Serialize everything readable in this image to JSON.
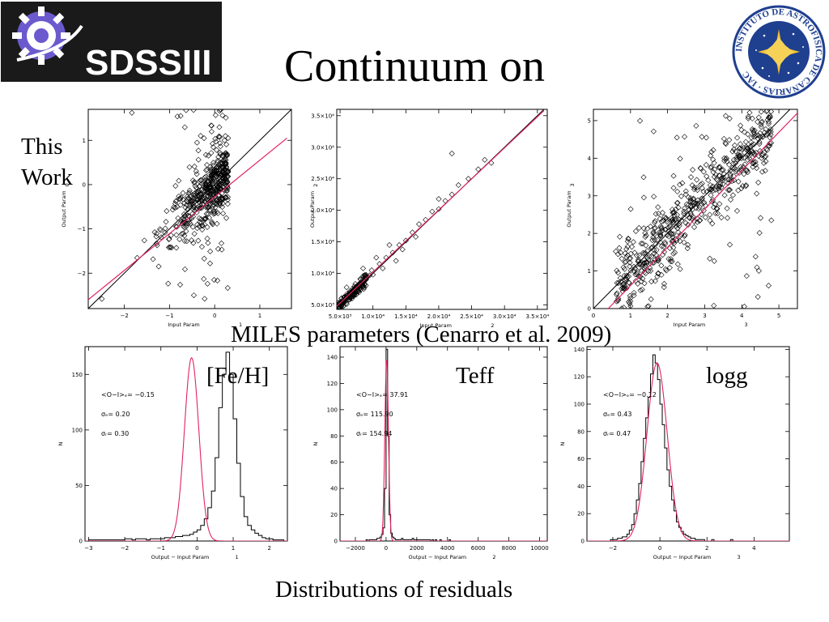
{
  "title": "Continuum on",
  "logos": {
    "sdss_text": "SDSSIII",
    "iac_text": "INSTITUTO DE ASTROFISICA DE CANARIAS · IAC"
  },
  "side_label_line1": "This",
  "side_label_line2": "Work",
  "miles_caption": "MILES parameters  (Cenarro et al. 2009)",
  "residuals_caption": "Distributions of residuals",
  "param_labels": {
    "feh": "[Fe/H]",
    "teff": "Teff",
    "logg": "logg"
  },
  "colors": {
    "fit_line": "#e0245e",
    "data": "#000000"
  },
  "chart_data": [
    {
      "id": "scatter-feh",
      "type": "scatter",
      "xlabel": "Input Param",
      "xlabel_suffix": "1",
      "ylabel": "Output Param",
      "side_tick": "0",
      "xlim": [
        -2.8,
        1.7
      ],
      "ylim": [
        -2.8,
        1.7
      ],
      "xticks": [
        {
          "v": -2,
          "t": "−2"
        },
        {
          "v": -1,
          "t": "−1"
        },
        {
          "v": 0,
          "t": "0"
        },
        {
          "v": 1,
          "t": "1"
        }
      ],
      "yticks": [
        {
          "v": -2,
          "t": "−2"
        },
        {
          "v": -1,
          "t": "−1"
        },
        {
          "v": 0,
          "t": "0"
        },
        {
          "v": 1,
          "t": "1"
        }
      ],
      "one_to_one": [
        [
          -2.8,
          -2.8
        ],
        [
          1.7,
          1.7
        ]
      ],
      "fit": [
        [
          -2.8,
          -2.6
        ],
        [
          1.6,
          1.05
        ]
      ],
      "cluster": {
        "n": 520,
        "center": 0.0,
        "spread_x": 0.7,
        "spread_y": 0.35,
        "skew": "neg",
        "outliers": 0.15
      }
    },
    {
      "id": "scatter-teff",
      "type": "scatter",
      "xlabel": "Input Param",
      "xlabel_suffix": "2",
      "ylabel": "Output Param",
      "side_tick": "2",
      "xlim": [
        4500,
        36500
      ],
      "ylim": [
        4300,
        36000
      ],
      "xticks": [
        {
          "v": 5000,
          "t": "5.0×10³"
        },
        {
          "v": 10000,
          "t": "1.0×10⁴"
        },
        {
          "v": 15000,
          "t": "1.5×10⁴"
        },
        {
          "v": 20000,
          "t": "2.0×10⁴"
        },
        {
          "v": 25000,
          "t": "2.5×10⁴"
        },
        {
          "v": 30000,
          "t": "3.0×10⁴"
        },
        {
          "v": 35000,
          "t": "3.5×10⁴"
        }
      ],
      "yticks": [
        {
          "v": 5000,
          "t": "5.0×10³"
        },
        {
          "v": 10000,
          "t": "1.0×10⁴"
        },
        {
          "v": 15000,
          "t": "1.5×10⁴"
        },
        {
          "v": 20000,
          "t": "2.0×10⁴"
        },
        {
          "v": 25000,
          "t": "2.5×10⁴"
        },
        {
          "v": 30000,
          "t": "3.0×10⁴"
        },
        {
          "v": 35000,
          "t": "3.5×10⁴"
        }
      ],
      "one_to_one": [
        [
          4500,
          4500
        ],
        [
          36000,
          36000
        ]
      ],
      "fit": [
        [
          4500,
          4800
        ],
        [
          36000,
          35800
        ]
      ],
      "points": [
        [
          5000,
          5100
        ],
        [
          5200,
          5300
        ],
        [
          5500,
          5600
        ],
        [
          5800,
          5900
        ],
        [
          6000,
          6200
        ],
        [
          6300,
          6200
        ],
        [
          6600,
          6700
        ],
        [
          7000,
          7100
        ],
        [
          7500,
          7800
        ],
        [
          8000,
          8200
        ],
        [
          8500,
          8600
        ],
        [
          9000,
          9200
        ],
        [
          9500,
          9700
        ],
        [
          10000,
          9800
        ],
        [
          11000,
          11500
        ],
        [
          12000,
          12500
        ],
        [
          13000,
          13300
        ],
        [
          14000,
          14500
        ],
        [
          15000,
          15200
        ],
        [
          16000,
          16500
        ],
        [
          17000,
          17800
        ],
        [
          18000,
          18500
        ],
        [
          19000,
          19800
        ],
        [
          20000,
          20200
        ],
        [
          21000,
          21500
        ],
        [
          22000,
          22500
        ],
        [
          23000,
          24000
        ],
        [
          24500,
          25000
        ],
        [
          26000,
          26500
        ],
        [
          27000,
          28000
        ],
        [
          28000,
          27500
        ],
        [
          22000,
          29000
        ],
        [
          10500,
          12500
        ],
        [
          8500,
          10800
        ],
        [
          13500,
          12000
        ],
        [
          6000,
          7800
        ],
        [
          5500,
          4800
        ],
        [
          7000,
          6400
        ],
        [
          11500,
          10800
        ],
        [
          16500,
          15800
        ],
        [
          9800,
          10500
        ],
        [
          20000,
          21800
        ],
        [
          12500,
          14500
        ],
        [
          14500,
          13800
        ]
      ],
      "dense_cluster": {
        "n": 150,
        "x": [
          4700,
          9000
        ],
        "slope": 1.0,
        "spread": 500
      }
    },
    {
      "id": "scatter-logg",
      "type": "scatter",
      "xlabel": "Input Param",
      "xlabel_suffix": "3",
      "ylabel": "Output Param",
      "side_tick": "3",
      "xlim": [
        0,
        5.5
      ],
      "ylim": [
        0,
        5.3
      ],
      "xticks": [
        {
          "v": 0,
          "t": "0"
        },
        {
          "v": 1,
          "t": "1"
        },
        {
          "v": 2,
          "t": "2"
        },
        {
          "v": 3,
          "t": "3"
        },
        {
          "v": 4,
          "t": "4"
        },
        {
          "v": 5,
          "t": "5"
        }
      ],
      "yticks": [
        {
          "v": 0,
          "t": "0"
        },
        {
          "v": 1,
          "t": "1"
        },
        {
          "v": 2,
          "t": "2"
        },
        {
          "v": 3,
          "t": "3"
        },
        {
          "v": 4,
          "t": "4"
        },
        {
          "v": 5,
          "t": "5"
        }
      ],
      "one_to_one": [
        [
          0,
          0
        ],
        [
          5.3,
          5.3
        ]
      ],
      "fit": [
        [
          0.4,
          0
        ],
        [
          5.5,
          5.2
        ]
      ],
      "cluster": {
        "n": 600,
        "center": 3.5,
        "spread_x": 1.2,
        "spread_y": 0.45,
        "skew": "mixed",
        "outliers": 0.1
      }
    },
    {
      "id": "hist-feh",
      "type": "histogram",
      "xlabel": "Output − Input Param",
      "xlabel_suffix": "1",
      "ylabel": "N",
      "xlim": [
        -3.1,
        2.5
      ],
      "ylim": [
        0,
        175
      ],
      "xticks": [
        {
          "v": -3,
          "t": "−3"
        },
        {
          "v": -2,
          "t": "−2"
        },
        {
          "v": -1,
          "t": "−1"
        },
        {
          "v": 0,
          "t": "0"
        },
        {
          "v": 1,
          "t": "1"
        },
        {
          "v": 2,
          "t": "2"
        }
      ],
      "yticks": [
        {
          "v": 0,
          "t": "0"
        },
        {
          "v": 50,
          "t": "50"
        },
        {
          "v": 100,
          "t": "100"
        },
        {
          "v": 150,
          "t": "150"
        }
      ],
      "stats": [
        "<O−I>ₑ=   −0.15",
        "σₑ=    0.20",
        "σᵣ=    0.30"
      ],
      "gauss": {
        "mu": -0.15,
        "sigma": 0.2,
        "amp": 165
      },
      "bins": {
        "start": -3.0,
        "width": 0.1,
        "counts": [
          1,
          1,
          1,
          1,
          1,
          1,
          1,
          1,
          1,
          1,
          2,
          2,
          1,
          2,
          2,
          2,
          1,
          2,
          2,
          2,
          2,
          3,
          3,
          3,
          4,
          4,
          5,
          5,
          6,
          8,
          10,
          14,
          20,
          30,
          45,
          75,
          120,
          150,
          170,
          150,
          110,
          70,
          40,
          22,
          14,
          10,
          7,
          5,
          3,
          2,
          2,
          1,
          1,
          1,
          0,
          1
        ]
      }
    },
    {
      "id": "hist-teff",
      "type": "histogram",
      "xlabel": "Output − Input Param",
      "xlabel_suffix": "2",
      "ylabel": "N",
      "xlim": [
        -3000,
        10500
      ],
      "ylim": [
        0,
        148
      ],
      "xticks": [
        {
          "v": -2000,
          "t": "−2000"
        },
        {
          "v": 0,
          "t": "0"
        },
        {
          "v": 2000,
          "t": "2000"
        },
        {
          "v": 4000,
          "t": "4000"
        },
        {
          "v": 6000,
          "t": "6000"
        },
        {
          "v": 8000,
          "t": "8000"
        },
        {
          "v": 10000,
          "t": "10000"
        }
      ],
      "yticks": [
        {
          "v": 0,
          "t": "0"
        },
        {
          "v": 20,
          "t": "20"
        },
        {
          "v": 40,
          "t": "40"
        },
        {
          "v": 60,
          "t": "60"
        },
        {
          "v": 80,
          "t": "80"
        },
        {
          "v": 100,
          "t": "100"
        },
        {
          "v": 120,
          "t": "120"
        },
        {
          "v": 140,
          "t": "140"
        }
      ],
      "stats": [
        "<O−I>ₑ=   37.91",
        "σₑ=  115.90",
        "σᵣ=  154.94"
      ],
      "gauss": {
        "mu": 37.91,
        "sigma": 115.9,
        "amp": 140
      },
      "bins": {
        "start": -3000,
        "width": 100,
        "counts": [
          0,
          0,
          0,
          0,
          0,
          0,
          0,
          0,
          0,
          0,
          0,
          0,
          0,
          0,
          0,
          0,
          0,
          1,
          0,
          1,
          1,
          1,
          1,
          1,
          2,
          2,
          3,
          5,
          10,
          40,
          146,
          80,
          20,
          6,
          3,
          2,
          1,
          1,
          1,
          1,
          2,
          1,
          1,
          1,
          1,
          1,
          1,
          2,
          1,
          1,
          1,
          1,
          1,
          1,
          1,
          1,
          1,
          1,
          1,
          0,
          1,
          0,
          1,
          0,
          0,
          1,
          0,
          0,
          0,
          0,
          0,
          1
        ]
      }
    },
    {
      "id": "hist-logg",
      "type": "histogram",
      "xlabel": "Output − Input Param",
      "xlabel_suffix": "3",
      "ylabel": "N",
      "xlim": [
        -3.1,
        5.5
      ],
      "ylim": [
        0,
        142
      ],
      "xticks": [
        {
          "v": -2,
          "t": "−2"
        },
        {
          "v": 0,
          "t": "0"
        },
        {
          "v": 2,
          "t": "2"
        },
        {
          "v": 4,
          "t": "4"
        }
      ],
      "yticks": [
        {
          "v": 0,
          "t": "0"
        },
        {
          "v": 20,
          "t": "20"
        },
        {
          "v": 40,
          "t": "40"
        },
        {
          "v": 60,
          "t": "60"
        },
        {
          "v": 80,
          "t": "80"
        },
        {
          "v": 100,
          "t": "100"
        },
        {
          "v": 120,
          "t": "120"
        },
        {
          "v": 140,
          "t": "140"
        }
      ],
      "stats": [
        "<O−I>ₑ=   −0.12",
        "σₑ=    0.43",
        "σᵣ=    0.47"
      ],
      "gauss": {
        "mu": -0.12,
        "sigma": 0.43,
        "amp": 130
      },
      "bins": {
        "start": -3.0,
        "width": 0.1,
        "counts": [
          0,
          0,
          0,
          0,
          0,
          0,
          0,
          0,
          0,
          1,
          1,
          1,
          2,
          2,
          3,
          3,
          5,
          8,
          12,
          20,
          30,
          42,
          58,
          75,
          90,
          105,
          122,
          136,
          130,
          118,
          100,
          85,
          68,
          52,
          40,
          30,
          22,
          14,
          10,
          7,
          5,
          4,
          3,
          2,
          2,
          1,
          1,
          1,
          1,
          0,
          0,
          0,
          1,
          0,
          0,
          0,
          0,
          0,
          0,
          0,
          1
        ]
      }
    }
  ]
}
